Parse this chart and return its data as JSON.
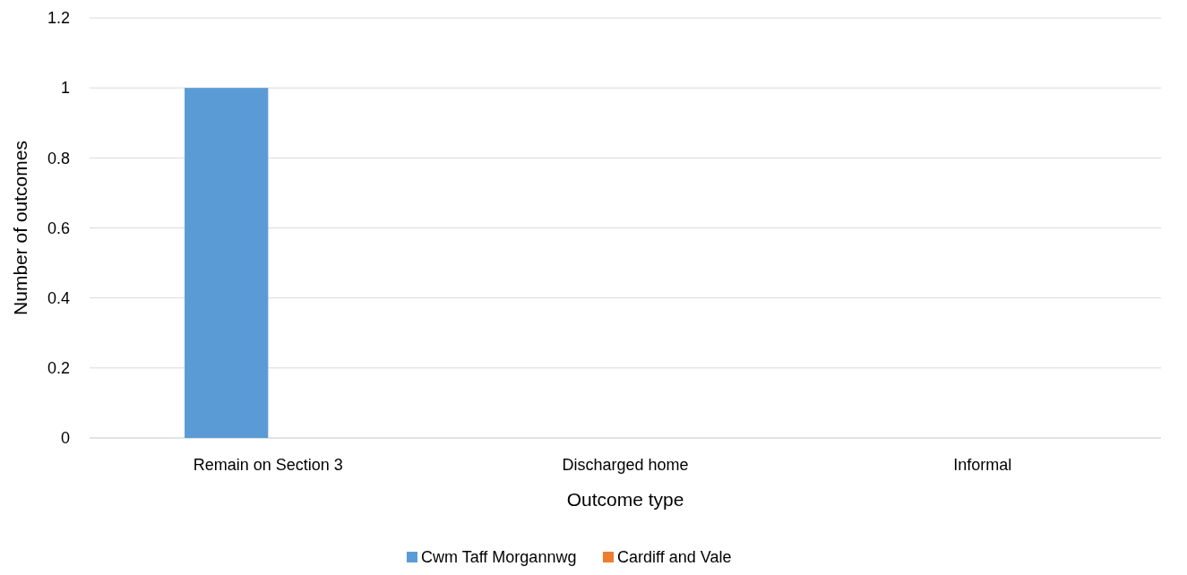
{
  "chart_data": {
    "type": "bar",
    "xlabel": "Outcome type",
    "ylabel": "Number of outcomes",
    "categories": [
      "Remain on Section 3",
      "Discharged home",
      "Informal"
    ],
    "series": [
      {
        "name": "Cwm Taff Morgannwg",
        "color": "#5b9bd5",
        "values": [
          1,
          0,
          0
        ]
      },
      {
        "name": "Cardiff and Vale",
        "color": "#ed7d31",
        "values": [
          0,
          0,
          0
        ]
      }
    ],
    "ylim": [
      0,
      1.2
    ],
    "yticks": [
      0,
      0.2,
      0.4,
      0.6,
      0.8,
      1,
      1.2
    ],
    "grid": "y",
    "legend": "bottom"
  }
}
